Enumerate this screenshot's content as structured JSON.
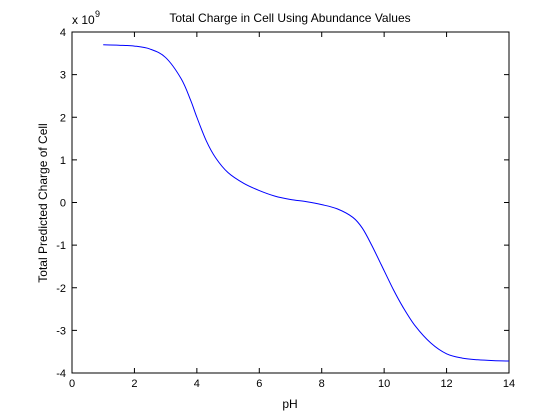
{
  "chart_data": {
    "type": "line",
    "title": "Total Charge in Cell Using Abundance Values",
    "xlabel": "pH",
    "ylabel": "Total Predicted Charge of Cell",
    "y_multiplier_base": "x 10",
    "y_multiplier_exponent": "9",
    "xlim": [
      0,
      14
    ],
    "ylim": [
      -4,
      4
    ],
    "x_ticks": [
      "0",
      "2",
      "4",
      "6",
      "8",
      "10",
      "12",
      "14"
    ],
    "y_ticks": [
      "-4",
      "-3",
      "-2",
      "-1",
      "0",
      "1",
      "2",
      "3",
      "4"
    ],
    "grid": false,
    "legend": "none",
    "line_color": "#0000ff",
    "series": [
      {
        "x": [
          1,
          1.5,
          2,
          2.5,
          3,
          3.5,
          3.8,
          4,
          4.3,
          4.6,
          5,
          5.5,
          6,
          6.5,
          7,
          7.5,
          8,
          8.5,
          9,
          9.3,
          9.6,
          10,
          10.3,
          10.6,
          11,
          11.5,
          12,
          12.5,
          13,
          13.5,
          14
        ],
        "y": [
          3.7,
          3.69,
          3.67,
          3.6,
          3.4,
          2.9,
          2.4,
          2.0,
          1.45,
          1.05,
          0.7,
          0.45,
          0.28,
          0.15,
          0.07,
          0.02,
          -0.05,
          -0.15,
          -0.35,
          -0.6,
          -1.0,
          -1.6,
          -2.05,
          -2.45,
          -2.9,
          -3.3,
          -3.55,
          -3.65,
          -3.69,
          -3.71,
          -3.72
        ]
      }
    ]
  }
}
